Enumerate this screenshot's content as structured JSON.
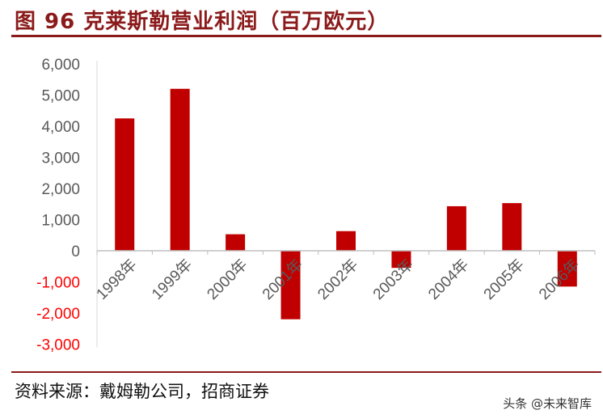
{
  "header": {
    "title": "图 96 克莱斯勒营业利润（百万欧元）"
  },
  "footer": {
    "source": "资料来源：戴姆勒公司，招商证券",
    "watermark": "头条 @未来智库"
  },
  "colors": {
    "bar": "#c00000",
    "title": "#8b1a1a",
    "negative_tick": "#ff0000",
    "positive_tick": "#595959"
  },
  "chart_data": {
    "type": "bar",
    "title": "图 96 克莱斯勒营业利润（百万欧元）",
    "categories": [
      "1998年",
      "1999年",
      "2000年",
      "2001年",
      "2002年",
      "2003年",
      "2004年",
      "2005年",
      "2006年"
    ],
    "values": [
      4250,
      5200,
      530,
      -2200,
      630,
      -550,
      1430,
      1530,
      -1150
    ],
    "ylim": [
      -3000,
      6000
    ],
    "yticks": [
      "6,000",
      "5,000",
      "4,000",
      "3,000",
      "2,000",
      "1,000",
      "0",
      "-1,000",
      "-2,000",
      "-3,000"
    ],
    "ytick_values": [
      6000,
      5000,
      4000,
      3000,
      2000,
      1000,
      0,
      -1000,
      -2000,
      -3000
    ],
    "grid": false,
    "legend": "none"
  }
}
